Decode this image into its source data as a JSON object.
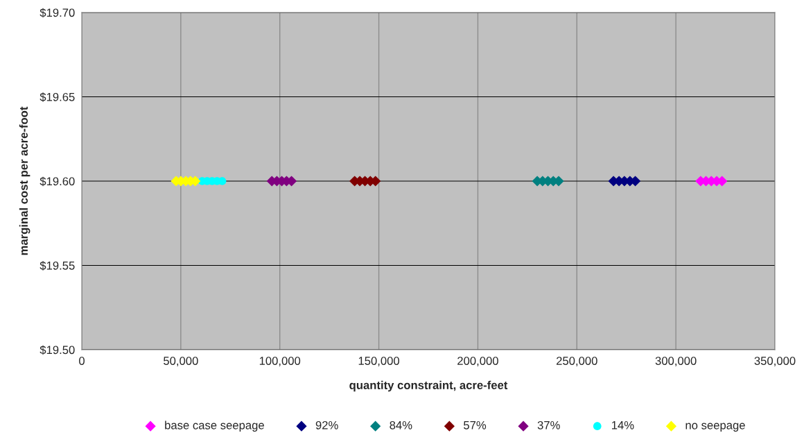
{
  "chart_data": {
    "type": "scatter",
    "xlabel": "quantity constraint, acre-feet",
    "ylabel": "marginal cost per acre-foot",
    "xlim": [
      0,
      350000
    ],
    "xticks": [
      {
        "value": 0,
        "label": "0"
      },
      {
        "value": 50000,
        "label": "50,000"
      },
      {
        "value": 100000,
        "label": "100,000"
      },
      {
        "value": 150000,
        "label": "150,000"
      },
      {
        "value": 200000,
        "label": "200,000"
      },
      {
        "value": 250000,
        "label": "250,000"
      },
      {
        "value": 300000,
        "label": "300,000"
      },
      {
        "value": 350000,
        "label": "350,000"
      }
    ],
    "ylim": [
      19.5,
      19.7
    ],
    "yticks": [
      {
        "value": 19.5,
        "label": "$19.50"
      },
      {
        "value": 19.55,
        "label": "$19.55"
      },
      {
        "value": 19.6,
        "label": "$19.60"
      },
      {
        "value": 19.65,
        "label": "$19.65"
      },
      {
        "value": 19.7,
        "label": "$19.70"
      }
    ],
    "grid": true,
    "legend": "bottom",
    "marker": "diamond",
    "series": [
      {
        "name": "base case seepage",
        "color": "#ff00ff",
        "x": [
          312500,
          315200,
          317900,
          320600,
          323300
        ],
        "values": [
          19.6,
          19.6,
          19.6,
          19.6,
          19.6
        ]
      },
      {
        "name": "92%",
        "color": "#000080",
        "x": [
          268500,
          271300,
          274000,
          276800,
          279500
        ],
        "values": [
          19.6,
          19.6,
          19.6,
          19.6,
          19.6
        ]
      },
      {
        "name": "84%",
        "color": "#008080",
        "x": [
          230000,
          232700,
          235400,
          238100,
          240800
        ],
        "values": [
          19.6,
          19.6,
          19.6,
          19.6,
          19.6
        ]
      },
      {
        "name": "57%",
        "color": "#800000",
        "x": [
          137800,
          140400,
          143000,
          145700,
          148300
        ],
        "values": [
          19.6,
          19.6,
          19.6,
          19.6,
          19.6
        ]
      },
      {
        "name": "37%",
        "color": "#800080",
        "x": [
          96000,
          98500,
          101000,
          103400,
          105900
        ],
        "values": [
          19.6,
          19.6,
          19.6,
          19.6,
          19.6
        ]
      },
      {
        "name": "14%",
        "color": "#00ffff",
        "marker": "circle",
        "x": [
          60800,
          63300,
          65800,
          68300,
          70900
        ],
        "values": [
          19.6,
          19.6,
          19.6,
          19.6,
          19.6
        ]
      },
      {
        "name": "no seepage",
        "color": "#ffff00",
        "x": [
          47600,
          50000,
          52500,
          54900,
          57300
        ],
        "values": [
          19.6,
          19.6,
          19.6,
          19.6,
          19.6
        ]
      }
    ]
  }
}
